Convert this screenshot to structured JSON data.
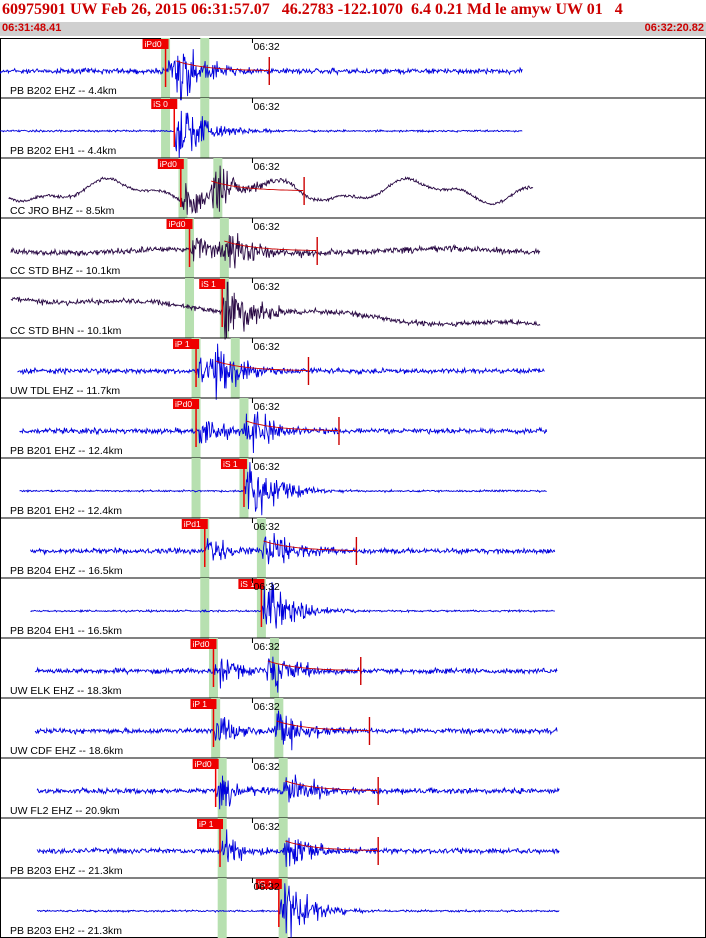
{
  "header": {
    "title": "60975901 UW Feb 26, 2015 06:31:57.07   46.2783 -122.1070  6.4 0.21 Md le amyw UW 01   4",
    "start_time": "06:31:48.41",
    "end_time": "06:32:20.82"
  },
  "colors": {
    "header_text": "#cc0000",
    "header_band": "#d0d0d0",
    "trace_blue": "#0000dd",
    "trace_dark": "#2a0a45",
    "pick_box": "#ee0000",
    "theoretical_band": "#b7e0b0",
    "coda_fit": "#cc0000"
  },
  "time_axis": {
    "start_s": 0,
    "end_s": 32.41,
    "tick_label": "06:32",
    "tick_s": 11.59
  },
  "traces": [
    {
      "label": "PB B202 EHZ -- 4.4km",
      "color": "blue",
      "style": "burst",
      "pick": {
        "label": "iPd0",
        "t": 7.6
      },
      "s_t": 8.0,
      "p_band": 7.6,
      "s_band": 9.4,
      "coda": true,
      "start_t": 0,
      "end_t": 24.0
    },
    {
      "label": "PB B202 EH1 -- 4.4km",
      "color": "blue",
      "style": "burst",
      "pick": {
        "label": "iS 0",
        "t": 8.0
      },
      "s_t": 8.0,
      "p_band": 7.6,
      "s_band": 9.4,
      "coda": false,
      "start_t": 0,
      "end_t": 24.0
    },
    {
      "label": "CC JRO BHZ -- 8.5km",
      "color": "dark",
      "style": "swell",
      "pick": {
        "label": "iPd0",
        "t": 8.3
      },
      "s_t": 9.6,
      "p_band": 8.4,
      "s_band": 10.0,
      "coda": true,
      "start_t": 0.4,
      "end_t": 24.5
    },
    {
      "label": "CC STD BHZ -- 10.1km",
      "color": "dark",
      "style": "noisy",
      "pick": {
        "label": "iPd0",
        "t": 8.7
      },
      "s_t": 10.2,
      "p_band": 8.7,
      "s_band": 10.3,
      "coda": true,
      "start_t": 0.5,
      "end_t": 24.8
    },
    {
      "label": "CC STD BHN -- 10.1km",
      "color": "dark",
      "style": "drift",
      "pick": {
        "label": "iS 1",
        "t": 10.2
      },
      "s_t": 10.2,
      "p_band": 8.7,
      "s_band": 10.3,
      "coda": false,
      "start_t": 0.5,
      "end_t": 24.8
    },
    {
      "label": "UW TDL EHZ -- 11.7km",
      "color": "blue",
      "style": "burst",
      "pick": {
        "label": "iP 1",
        "t": 9.0
      },
      "s_t": 9.8,
      "p_band": 9.0,
      "s_band": 10.8,
      "coda": true,
      "start_t": 0.8,
      "end_t": 25.0
    },
    {
      "label": "PB B201 EHZ -- 12.4km",
      "color": "blue",
      "style": "burst",
      "pick": {
        "label": "iPd0",
        "t": 9.0
      },
      "s_t": 11.2,
      "p_band": 9.0,
      "s_band": 11.2,
      "coda": true,
      "start_t": 0.9,
      "end_t": 25.1
    },
    {
      "label": "PB B201 EH2 -- 12.4km",
      "color": "blue",
      "style": "burst",
      "pick": {
        "label": "iS 1",
        "t": 11.2
      },
      "s_t": 11.2,
      "p_band": 9.0,
      "s_band": 11.2,
      "coda": false,
      "start_t": 0.9,
      "end_t": 25.1
    },
    {
      "label": "PB B204 EHZ -- 16.5km",
      "color": "blue",
      "style": "burst",
      "pick": {
        "label": "iPd1",
        "t": 9.4
      },
      "s_t": 12.0,
      "p_band": 9.4,
      "s_band": 12.0,
      "coda": true,
      "start_t": 1.4,
      "end_t": 25.5
    },
    {
      "label": "PB B204 EH1 -- 16.5km",
      "color": "blue",
      "style": "burst",
      "pick": {
        "label": "iS 1",
        "t": 12.0
      },
      "s_t": 12.0,
      "p_band": 9.4,
      "s_band": 12.0,
      "coda": false,
      "start_t": 1.4,
      "end_t": 25.5
    },
    {
      "label": "UW ELK EHZ -- 18.3km",
      "color": "blue",
      "style": "burst",
      "pick": {
        "label": "iPd0",
        "t": 9.8
      },
      "s_t": 12.2,
      "p_band": 9.8,
      "s_band": 12.6,
      "coda": true,
      "start_t": 1.6,
      "end_t": 25.6
    },
    {
      "label": "UW CDF EHZ -- 18.6km",
      "color": "blue",
      "style": "burst",
      "pick": {
        "label": "iP 1",
        "t": 9.8
      },
      "s_t": 12.6,
      "p_band": 9.9,
      "s_band": 12.8,
      "coda": true,
      "start_t": 1.6,
      "end_t": 25.6
    },
    {
      "label": "UW FL2 EHZ -- 20.9km",
      "color": "blue",
      "style": "burst",
      "pick": {
        "label": "iPd0",
        "t": 9.9
      },
      "s_t": 13.0,
      "p_band": 10.2,
      "s_band": 13.0,
      "coda": true,
      "start_t": 1.7,
      "end_t": 25.7
    },
    {
      "label": "PB B203 EHZ -- 21.3km",
      "color": "blue",
      "style": "burst",
      "pick": {
        "label": "iP 1",
        "t": 10.1
      },
      "s_t": 13.0,
      "p_band": 10.2,
      "s_band": 13.0,
      "coda": true,
      "start_t": 1.7,
      "end_t": 25.7
    },
    {
      "label": "PB B203 EH2 -- 21.3km",
      "color": "blue",
      "style": "burst",
      "pick": {
        "label": "iS 1",
        "t": 12.8
      },
      "s_t": 12.8,
      "p_band": 10.2,
      "s_band": 13.0,
      "coda": false,
      "start_t": 1.7,
      "end_t": 25.7
    }
  ]
}
